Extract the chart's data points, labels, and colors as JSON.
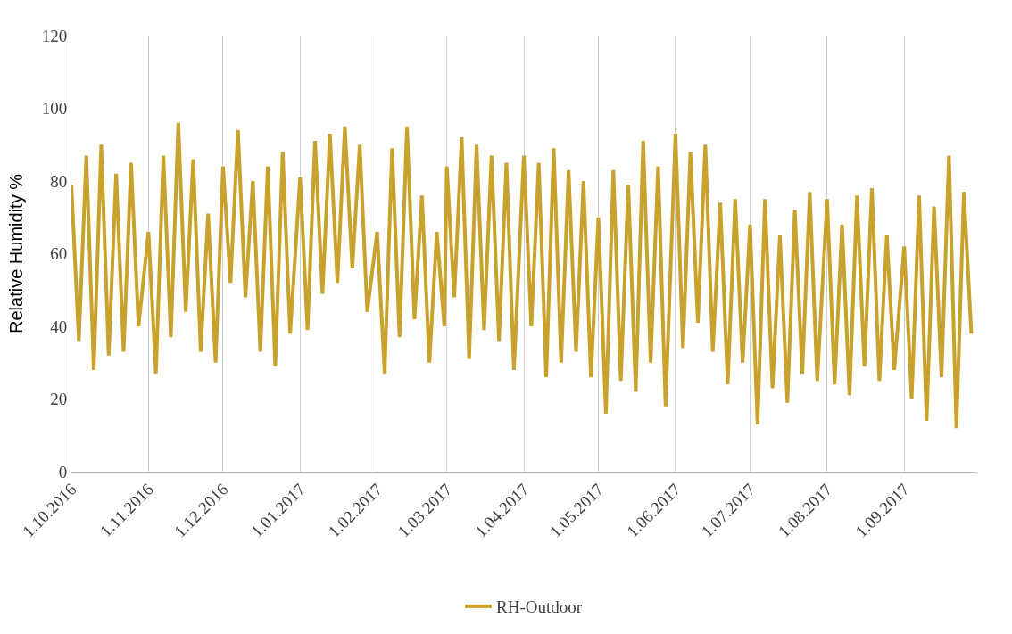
{
  "chart_data": {
    "type": "line",
    "ylabel": "Relative Humidity %",
    "xlim": [
      "2016-10-01",
      "2017-09-30"
    ],
    "ylim": [
      0,
      120
    ],
    "yticks": [
      0,
      20,
      40,
      60,
      80,
      100,
      120
    ],
    "xticks": [
      {
        "value": "2016-10-01",
        "label": "1.10.2016"
      },
      {
        "value": "2016-11-01",
        "label": "1.11.2016"
      },
      {
        "value": "2016-12-01",
        "label": "1.12.2016"
      },
      {
        "value": "2017-01-01",
        "label": "1.01.2017"
      },
      {
        "value": "2017-02-01",
        "label": "1.02.2017"
      },
      {
        "value": "2017-03-01",
        "label": "1.03.2017"
      },
      {
        "value": "2017-04-01",
        "label": "1.04.2017"
      },
      {
        "value": "2017-05-01",
        "label": "1.05.2017"
      },
      {
        "value": "2017-06-01",
        "label": "1.06.2017"
      },
      {
        "value": "2017-07-01",
        "label": "1.07.2017"
      },
      {
        "value": "2017-08-01",
        "label": "1.08.2017"
      },
      {
        "value": "2017-09-01",
        "label": "1.09.2017"
      }
    ],
    "grid": "x",
    "legend": "bottom",
    "line_style": "solid",
    "x": [
      "2016-10-01",
      "2016-10-04",
      "2016-10-07",
      "2016-10-10",
      "2016-10-13",
      "2016-10-16",
      "2016-10-19",
      "2016-10-22",
      "2016-10-25",
      "2016-10-28",
      "2016-11-01",
      "2016-11-04",
      "2016-11-07",
      "2016-11-10",
      "2016-11-13",
      "2016-11-16",
      "2016-11-19",
      "2016-11-22",
      "2016-11-25",
      "2016-11-28",
      "2016-12-01",
      "2016-12-04",
      "2016-12-07",
      "2016-12-10",
      "2016-12-13",
      "2016-12-16",
      "2016-12-19",
      "2016-12-22",
      "2016-12-25",
      "2016-12-28",
      "2017-01-01",
      "2017-01-04",
      "2017-01-07",
      "2017-01-10",
      "2017-01-13",
      "2017-01-16",
      "2017-01-19",
      "2017-01-22",
      "2017-01-25",
      "2017-01-28",
      "2017-02-01",
      "2017-02-04",
      "2017-02-07",
      "2017-02-10",
      "2017-02-13",
      "2017-02-16",
      "2017-02-19",
      "2017-02-22",
      "2017-02-25",
      "2017-02-28",
      "2017-03-01",
      "2017-03-04",
      "2017-03-07",
      "2017-03-10",
      "2017-03-13",
      "2017-03-16",
      "2017-03-19",
      "2017-03-22",
      "2017-03-25",
      "2017-03-28",
      "2017-04-01",
      "2017-04-04",
      "2017-04-07",
      "2017-04-10",
      "2017-04-13",
      "2017-04-16",
      "2017-04-19",
      "2017-04-22",
      "2017-04-25",
      "2017-04-28",
      "2017-05-01",
      "2017-05-04",
      "2017-05-07",
      "2017-05-10",
      "2017-05-13",
      "2017-05-16",
      "2017-05-19",
      "2017-05-22",
      "2017-05-25",
      "2017-05-28",
      "2017-06-01",
      "2017-06-04",
      "2017-06-07",
      "2017-06-10",
      "2017-06-13",
      "2017-06-16",
      "2017-06-19",
      "2017-06-22",
      "2017-06-25",
      "2017-06-28",
      "2017-07-01",
      "2017-07-04",
      "2017-07-07",
      "2017-07-10",
      "2017-07-13",
      "2017-07-16",
      "2017-07-19",
      "2017-07-22",
      "2017-07-25",
      "2017-07-28",
      "2017-08-01",
      "2017-08-04",
      "2017-08-07",
      "2017-08-10",
      "2017-08-13",
      "2017-08-16",
      "2017-08-19",
      "2017-08-22",
      "2017-08-25",
      "2017-08-28",
      "2017-09-01",
      "2017-09-04",
      "2017-09-07",
      "2017-09-10",
      "2017-09-13",
      "2017-09-16",
      "2017-09-19",
      "2017-09-22",
      "2017-09-25",
      "2017-09-28"
    ],
    "series": [
      {
        "name": "RH-Outdoor",
        "color": "#c9a22d",
        "values": [
          79,
          36,
          87,
          28,
          90,
          32,
          82,
          33,
          85,
          40,
          66,
          27,
          87,
          37,
          96,
          44,
          86,
          33,
          71,
          30,
          84,
          52,
          94,
          48,
          80,
          33,
          84,
          29,
          88,
          38,
          81,
          39,
          91,
          49,
          93,
          52,
          95,
          56,
          90,
          44,
          66,
          27,
          89,
          37,
          95,
          42,
          76,
          30,
          66,
          40,
          84,
          48,
          92,
          31,
          90,
          39,
          87,
          36,
          85,
          28,
          87,
          40,
          85,
          26,
          89,
          30,
          83,
          33,
          80,
          26,
          70,
          16,
          83,
          25,
          79,
          22,
          91,
          30,
          84,
          18,
          93,
          34,
          88,
          41,
          90,
          33,
          74,
          24,
          75,
          30,
          68,
          13,
          75,
          23,
          65,
          19,
          72,
          27,
          77,
          25,
          75,
          24,
          68,
          21,
          76,
          29,
          78,
          25,
          65,
          28,
          62,
          20,
          76,
          14,
          73,
          26,
          87,
          12,
          77,
          38
        ]
      }
    ]
  }
}
